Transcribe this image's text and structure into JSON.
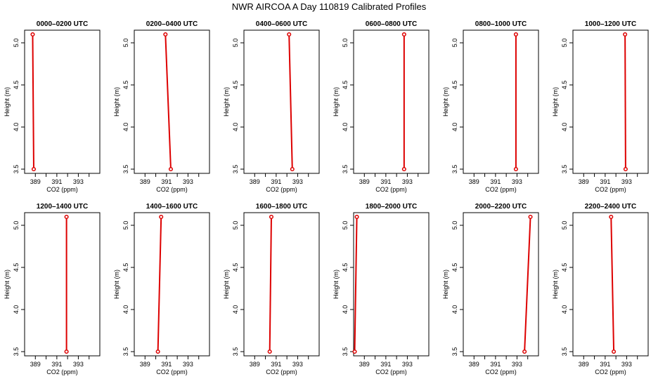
{
  "figure": {
    "title": "NWR AIRCOA A  Day 110819  Calibrated Profiles"
  },
  "colors": {
    "profile_line": "#dd0000",
    "axes": "#000000",
    "background": "#ffffff"
  },
  "chart_data": [
    {
      "type": "line",
      "title": "0000–0200 UTC",
      "xlabel": "CO2 (ppm)",
      "ylabel": "Height (m)",
      "xlim": [
        388,
        395
      ],
      "ylim": [
        3.45,
        5.15
      ],
      "xticks": [
        389,
        391,
        393
      ],
      "yticks": [
        3.5,
        4.0,
        4.5,
        5.0
      ],
      "x": [
        388.85,
        388.75
      ],
      "y": [
        3.5,
        5.1
      ]
    },
    {
      "type": "line",
      "title": "0200–0400 UTC",
      "xlabel": "CO2 (ppm)",
      "ylabel": "Height (m)",
      "xlim": [
        388,
        395
      ],
      "ylim": [
        3.45,
        5.15
      ],
      "xticks": [
        389,
        391,
        393
      ],
      "yticks": [
        3.5,
        4.0,
        4.5,
        5.0
      ],
      "x": [
        391.4,
        390.9
      ],
      "y": [
        3.5,
        5.1
      ]
    },
    {
      "type": "line",
      "title": "0400–0600 UTC",
      "xlabel": "CO2 (ppm)",
      "ylabel": "Height (m)",
      "xlim": [
        388,
        395
      ],
      "ylim": [
        3.45,
        5.15
      ],
      "xticks": [
        389,
        391,
        393
      ],
      "yticks": [
        3.5,
        4.0,
        4.5,
        5.0
      ],
      "x": [
        392.5,
        392.2
      ],
      "y": [
        3.5,
        5.1
      ]
    },
    {
      "type": "line",
      "title": "0600–0800 UTC",
      "xlabel": "CO2 (ppm)",
      "ylabel": "Height (m)",
      "xlim": [
        388,
        395
      ],
      "ylim": [
        3.45,
        5.15
      ],
      "xticks": [
        389,
        391,
        393
      ],
      "yticks": [
        3.5,
        4.0,
        4.5,
        5.0
      ],
      "x": [
        392.7,
        392.7
      ],
      "y": [
        3.5,
        5.1
      ]
    },
    {
      "type": "line",
      "title": "0800–1000 UTC",
      "xlabel": "CO2 (ppm)",
      "ylabel": "Height (m)",
      "xlim": [
        388,
        395
      ],
      "ylim": [
        3.45,
        5.15
      ],
      "xticks": [
        389,
        391,
        393
      ],
      "yticks": [
        3.5,
        4.0,
        4.5,
        5.0
      ],
      "x": [
        392.9,
        392.9
      ],
      "y": [
        3.5,
        5.1
      ]
    },
    {
      "type": "line",
      "title": "1000–1200 UTC",
      "xlabel": "CO2 (ppm)",
      "ylabel": "Height (m)",
      "xlim": [
        388,
        395
      ],
      "ylim": [
        3.45,
        5.15
      ],
      "xticks": [
        389,
        391,
        393
      ],
      "yticks": [
        3.5,
        4.0,
        4.5,
        5.0
      ],
      "x": [
        392.9,
        392.85
      ],
      "y": [
        3.5,
        5.1
      ]
    },
    {
      "type": "line",
      "title": "1200–1400 UTC",
      "xlabel": "CO2 (ppm)",
      "ylabel": "Height (m)",
      "xlim": [
        388,
        395
      ],
      "ylim": [
        3.45,
        5.15
      ],
      "xticks": [
        389,
        391,
        393
      ],
      "yticks": [
        3.5,
        4.0,
        4.5,
        5.0
      ],
      "x": [
        391.9,
        391.9
      ],
      "y": [
        3.5,
        5.1
      ]
    },
    {
      "type": "line",
      "title": "1400–1600 UTC",
      "xlabel": "CO2 (ppm)",
      "ylabel": "Height (m)",
      "xlim": [
        388,
        395
      ],
      "ylim": [
        3.45,
        5.15
      ],
      "xticks": [
        389,
        391,
        393
      ],
      "yticks": [
        3.5,
        4.0,
        4.5,
        5.0
      ],
      "x": [
        390.2,
        390.5
      ],
      "y": [
        3.5,
        5.1
      ]
    },
    {
      "type": "line",
      "title": "1600–1800 UTC",
      "xlabel": "CO2 (ppm)",
      "ylabel": "Height (m)",
      "xlim": [
        388,
        395
      ],
      "ylim": [
        3.45,
        5.15
      ],
      "xticks": [
        389,
        391,
        393
      ],
      "yticks": [
        3.5,
        4.0,
        4.5,
        5.0
      ],
      "x": [
        390.4,
        390.55
      ],
      "y": [
        3.5,
        5.1
      ]
    },
    {
      "type": "line",
      "title": "1800–2000 UTC",
      "xlabel": "CO2 (ppm)",
      "ylabel": "Height (m)",
      "xlim": [
        388,
        395
      ],
      "ylim": [
        3.45,
        5.15
      ],
      "xticks": [
        389,
        391,
        393
      ],
      "yticks": [
        3.5,
        4.0,
        4.5,
        5.0
      ],
      "x": [
        388.1,
        388.3
      ],
      "y": [
        3.5,
        5.1
      ]
    },
    {
      "type": "line",
      "title": "2000–2200 UTC",
      "xlabel": "CO2 (ppm)",
      "ylabel": "Height (m)",
      "xlim": [
        388,
        395
      ],
      "ylim": [
        3.45,
        5.15
      ],
      "xticks": [
        389,
        391,
        393
      ],
      "yticks": [
        3.5,
        4.0,
        4.5,
        5.0
      ],
      "x": [
        393.7,
        394.25
      ],
      "y": [
        3.5,
        5.1
      ]
    },
    {
      "type": "line",
      "title": "2200–2400 UTC",
      "xlabel": "CO2 (ppm)",
      "ylabel": "Height (m)",
      "xlim": [
        388,
        395
      ],
      "ylim": [
        3.45,
        5.15
      ],
      "xticks": [
        389,
        391,
        393
      ],
      "yticks": [
        3.5,
        4.0,
        4.5,
        5.0
      ],
      "x": [
        391.8,
        391.55
      ],
      "y": [
        3.5,
        5.1
      ]
    }
  ]
}
